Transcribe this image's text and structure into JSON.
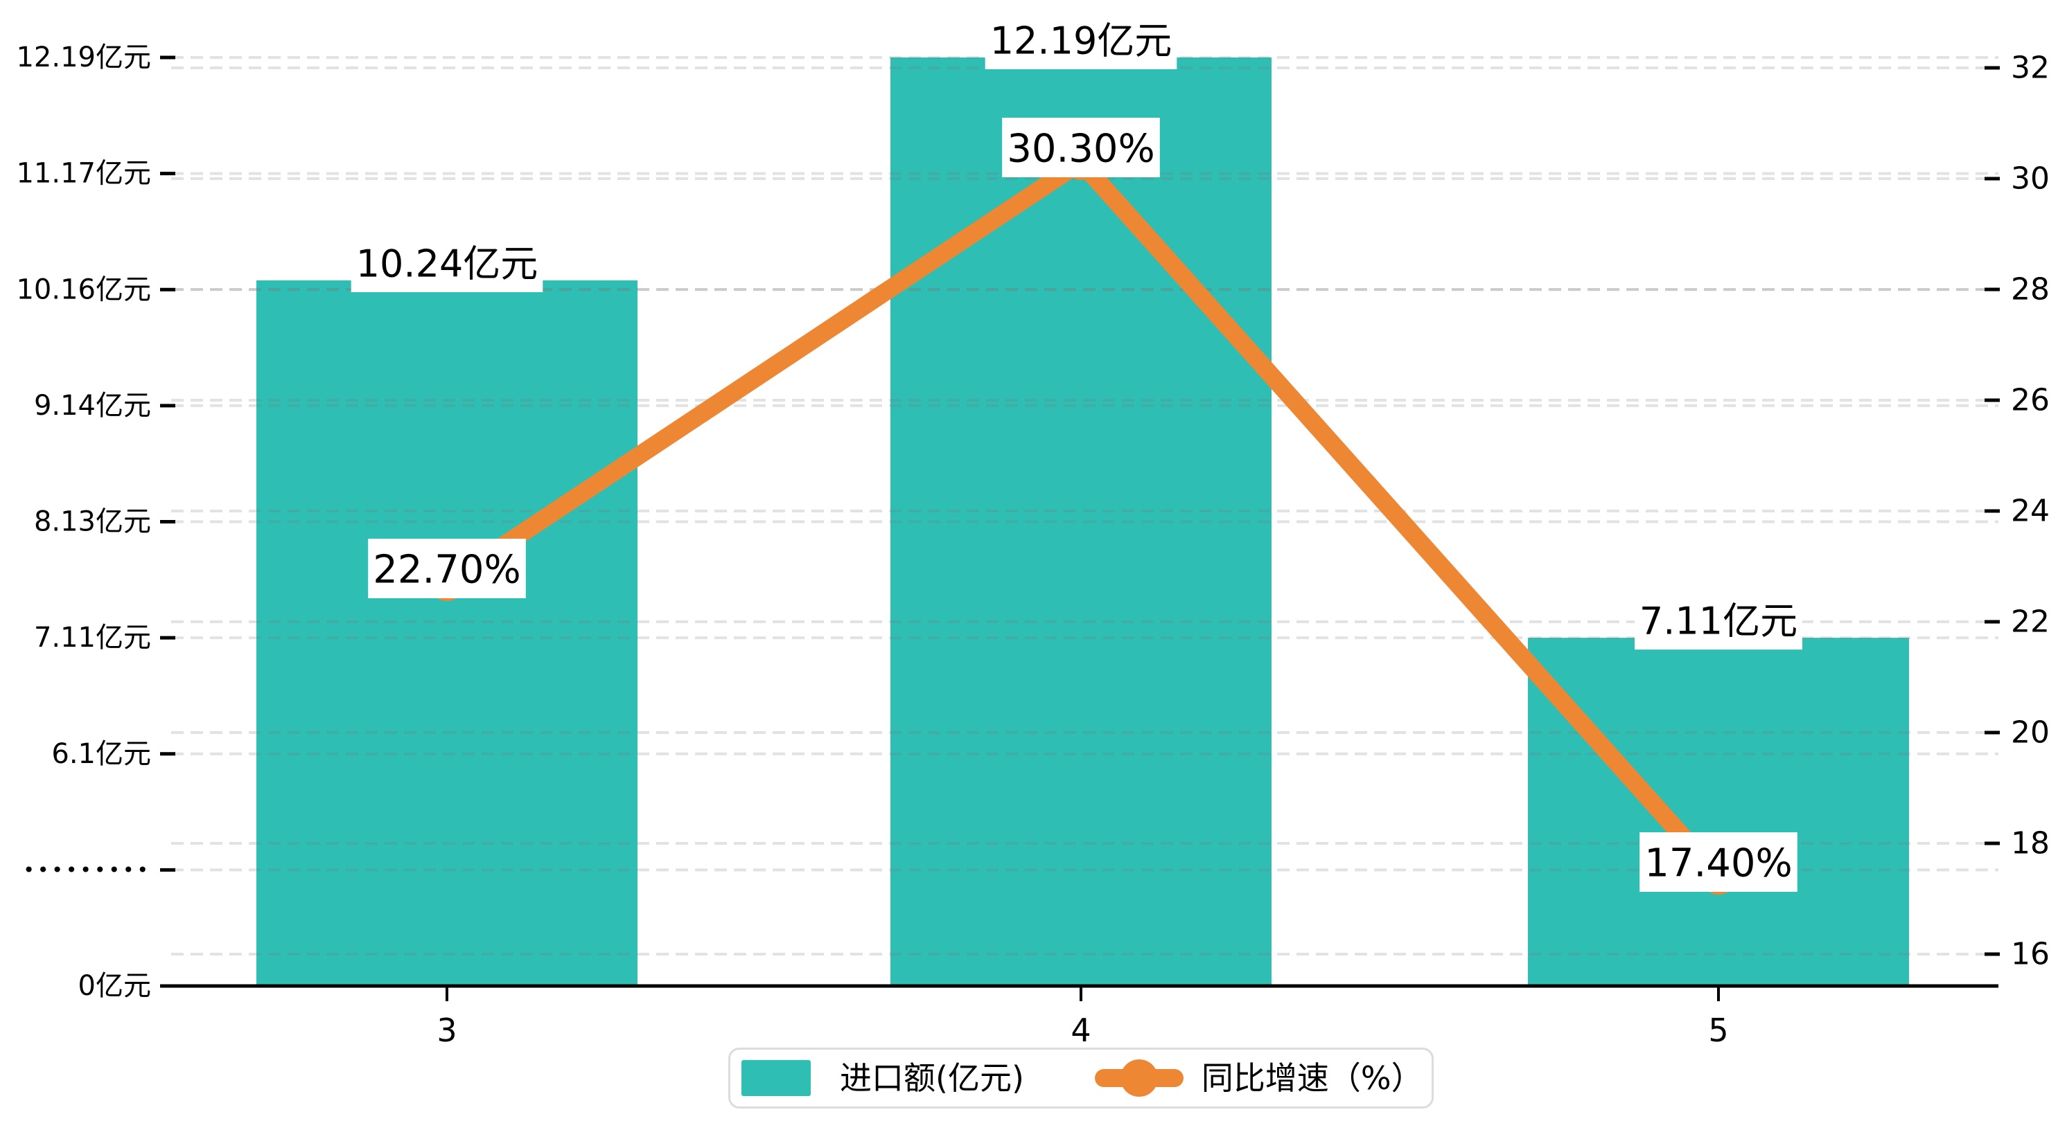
{
  "chart_data": {
    "type": "bar-line-combo",
    "categories": [
      "3",
      "4",
      "5"
    ],
    "series": [
      {
        "name": "进口额(亿元)",
        "type": "bar",
        "axis": "left",
        "color": "#2FBEB3",
        "values": [
          10.24,
          12.19,
          7.11
        ],
        "data_labels": [
          "10.24亿元",
          "12.19亿元",
          "7.11亿元"
        ]
      },
      {
        "name": "同比增速（%）",
        "type": "line",
        "axis": "right",
        "color": "#ED8733",
        "values": [
          22.7,
          30.3,
          17.4
        ],
        "data_labels": [
          "22.70%",
          "30.30%",
          "17.40%"
        ]
      }
    ],
    "left_axis": {
      "tick_labels": [
        "12.19亿元",
        "11.17亿元",
        "10.16亿元",
        "9.14亿元",
        "8.13亿元",
        "7.11亿元",
        "6.1亿元",
        "•••••••••",
        "0亿元"
      ],
      "tick_values": [
        12.19,
        11.17,
        10.16,
        9.14,
        8.13,
        7.11,
        6.1,
        null,
        0
      ]
    },
    "right_axis": {
      "tick_labels": [
        "32",
        "30",
        "28",
        "26",
        "24",
        "22",
        "20",
        "18",
        "16"
      ],
      "min": 16,
      "max": 32,
      "step": 2
    },
    "legend": {
      "items": [
        "进口额(亿元)",
        "同比增速（%）"
      ],
      "position": "bottom"
    },
    "grid": {
      "shown": true,
      "style": "dashed"
    },
    "colors": {
      "bar": "#2FBEB3",
      "line": "#ED8733",
      "label_bg": "#FFFFFF",
      "text": "#000000",
      "grid_rgba": "rgba(125,125,125,0.22)",
      "axis": "#000000",
      "legend_border": "#DCDCDC"
    }
  }
}
